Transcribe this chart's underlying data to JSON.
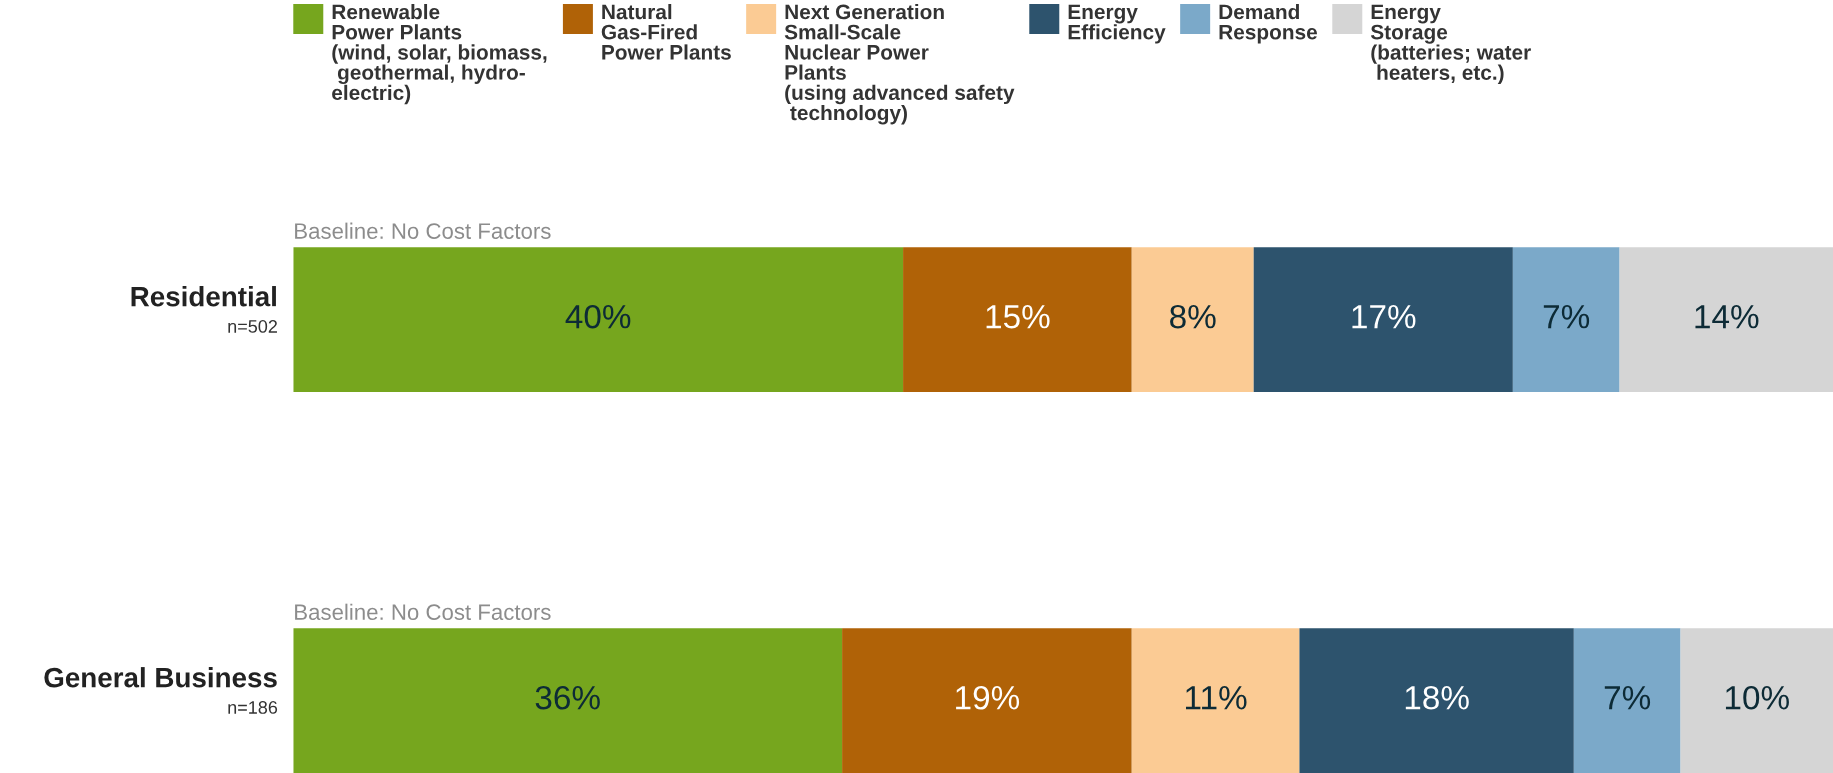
{
  "chart_data": {
    "type": "bar",
    "orientation": "horizontal",
    "stacked": true,
    "categories": [
      "Residential\nn=502",
      "General Business\nn=186"
    ],
    "series": [
      {
        "name": "Renewable\nPower Plants\n(wind, solar, biomass,\n geothermal, hydro-\nelectric)",
        "color": "#76a61e",
        "values": [
          40,
          36
        ],
        "value_labels": [
          "40%",
          "36%"
        ]
      },
      {
        "name": "Natural\nGas-Fired\nPower Plants",
        "color": "#b06207",
        "values": [
          15,
          19
        ],
        "value_labels": [
          "15%",
          "19%"
        ]
      },
      {
        "name": "Next Generation\nSmall-Scale\nNuclear Power\nPlants\n(using advanced safety\n technology)",
        "color": "#fbcb94",
        "values": [
          8,
          11
        ],
        "value_labels": [
          "8%",
          "11%"
        ]
      },
      {
        "name": "Energy\nEfficiency",
        "color": "#2d536d",
        "values": [
          17,
          18
        ],
        "value_labels": [
          "17%",
          "18%"
        ]
      },
      {
        "name": "Demand\nResponse",
        "color": "#7ba9c9",
        "values": [
          7,
          7
        ],
        "value_labels": [
          "7%",
          "7%"
        ]
      },
      {
        "name": "Energy\nStorage\n(batteries; water\n heaters, etc.)",
        "color": "#d5d5d5",
        "values": [
          14,
          10
        ],
        "value_labels": [
          "14%",
          "10%"
        ]
      }
    ],
    "legend": "top",
    "annotations": [
      "Baseline: No Cost Factors",
      "Baseline: No Cost Factors"
    ]
  }
}
